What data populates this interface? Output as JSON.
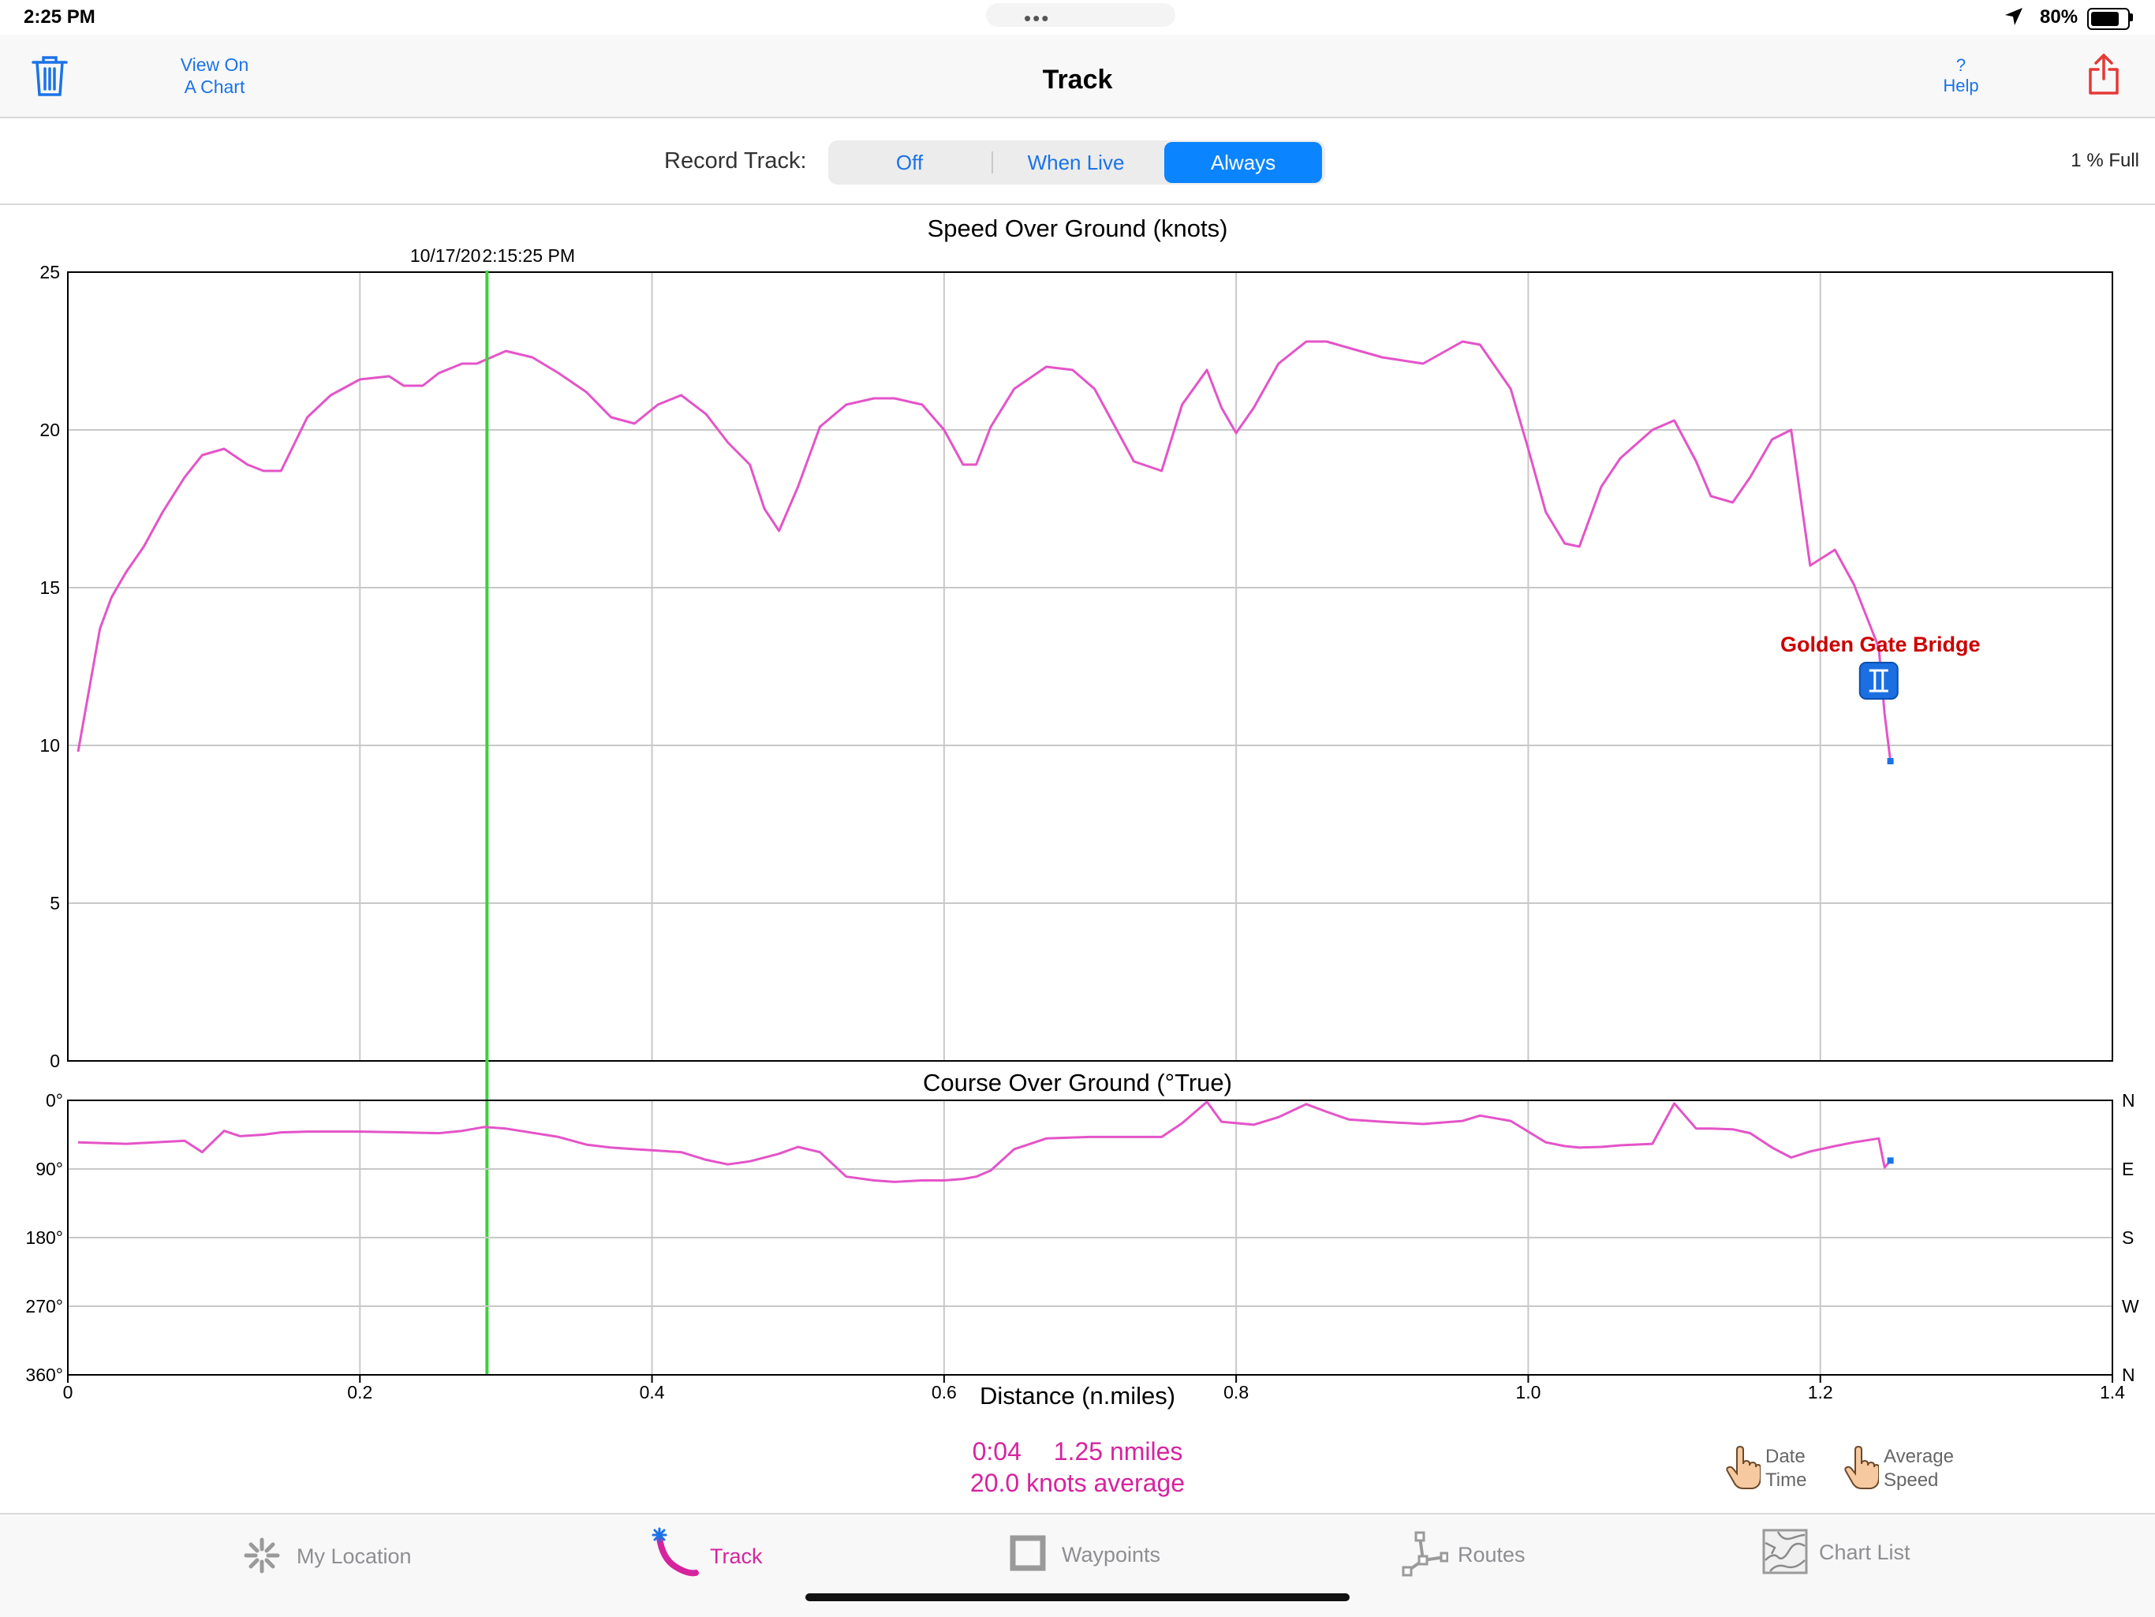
{
  "status_bar": {
    "time": "2:25 PM",
    "battery": "80%",
    "battery_level": 0.8
  },
  "nav": {
    "title": "Track",
    "view_on_chart_line1": "View On",
    "view_on_chart_line2": "A Chart",
    "help_symbol": "?",
    "help_label": "Help",
    "delete_icon": "trash-icon",
    "share_icon": "share-icon"
  },
  "record": {
    "label": "Record Track:",
    "options": [
      "Off",
      "When Live",
      "Always"
    ],
    "selected": "Always",
    "storage": "1 % Full"
  },
  "chart_data": [
    {
      "type": "line",
      "title": "Speed Over Ground (knots)",
      "xlabel": "Distance (n.miles)",
      "ylabel": "",
      "xlim": [
        0,
        1.4
      ],
      "ylim": [
        0,
        25
      ],
      "x_ticks": [
        "0",
        "0.2",
        "0.4",
        "0.6",
        "0.8",
        "1.0",
        "1.2",
        "1.4"
      ],
      "y_ticks": [
        "0",
        "5",
        "10",
        "15",
        "20",
        "25"
      ],
      "grid": true,
      "color": "#e454c8",
      "cursor": {
        "x": 0.287,
        "label_date": "10/17/20",
        "label_time": "2:15:25 PM",
        "color": "#3dd13d"
      },
      "annotation": {
        "text": "Golden Gate Bridge",
        "x": 1.24,
        "color": "#cc0000"
      },
      "series": [
        {
          "x": [
            0.007,
            0.022,
            0.03,
            0.04,
            0.052,
            0.065,
            0.08,
            0.092,
            0.107,
            0.123,
            0.134,
            0.146,
            0.164,
            0.18,
            0.2,
            0.22,
            0.23,
            0.243,
            0.254,
            0.27,
            0.28,
            0.3,
            0.318,
            0.336,
            0.355,
            0.372,
            0.388,
            0.404,
            0.42,
            0.437,
            0.452,
            0.467,
            0.477,
            0.487,
            0.5,
            0.515,
            0.533,
            0.552,
            0.566,
            0.585,
            0.6,
            0.613,
            0.622,
            0.632,
            0.648,
            0.67,
            0.688,
            0.703,
            0.73,
            0.749,
            0.763,
            0.78,
            0.79,
            0.8,
            0.812,
            0.829,
            0.848,
            0.862,
            0.877,
            0.9,
            0.928,
            0.955,
            0.967,
            0.988,
            1.0,
            1.012,
            1.025,
            1.035,
            1.05,
            1.063,
            1.085,
            1.1,
            1.115,
            1.125,
            1.14,
            1.152,
            1.167,
            1.18,
            1.193,
            1.21,
            1.223,
            1.24,
            1.244,
            1.248
          ],
          "values": [
            9.8,
            13.7,
            14.7,
            15.5,
            16.3,
            17.4,
            18.5,
            19.2,
            19.4,
            18.9,
            18.7,
            18.7,
            20.4,
            21.1,
            21.6,
            21.7,
            21.4,
            21.4,
            21.8,
            22.1,
            22.1,
            22.5,
            22.3,
            21.8,
            21.2,
            20.4,
            20.2,
            20.8,
            21.1,
            20.5,
            19.6,
            18.9,
            17.5,
            16.8,
            18.2,
            20.1,
            20.8,
            21.0,
            21.0,
            20.8,
            20.0,
            18.9,
            18.9,
            20.1,
            21.3,
            22.0,
            21.9,
            21.3,
            19.0,
            18.7,
            20.8,
            21.9,
            20.7,
            19.9,
            20.7,
            22.1,
            22.8,
            22.8,
            22.6,
            22.3,
            22.1,
            22.8,
            22.7,
            21.3,
            19.4,
            17.4,
            16.4,
            16.3,
            18.2,
            19.1,
            20.0,
            20.3,
            19.0,
            17.9,
            17.7,
            18.5,
            19.7,
            20.0,
            15.7,
            16.2,
            15.1,
            13.1,
            11.0,
            9.5
          ]
        }
      ]
    },
    {
      "type": "line",
      "title": "Course Over Ground (°True)",
      "xlabel": "Distance (n.miles)",
      "xlim": [
        0,
        1.4
      ],
      "ylim": [
        0,
        360
      ],
      "y_inverted": true,
      "y_ticks": [
        "0°",
        "90°",
        "180°",
        "270°",
        "360°"
      ],
      "y_ticks_right": [
        "N",
        "E",
        "S",
        "W",
        "N"
      ],
      "grid": true,
      "color": "#e454c8",
      "series": [
        {
          "x": [
            0.007,
            0.04,
            0.08,
            0.092,
            0.107,
            0.118,
            0.134,
            0.146,
            0.164,
            0.2,
            0.23,
            0.254,
            0.27,
            0.285,
            0.3,
            0.336,
            0.355,
            0.372,
            0.388,
            0.404,
            0.42,
            0.437,
            0.452,
            0.467,
            0.487,
            0.5,
            0.515,
            0.533,
            0.552,
            0.566,
            0.585,
            0.6,
            0.613,
            0.622,
            0.632,
            0.648,
            0.67,
            0.7,
            0.73,
            0.749,
            0.763,
            0.78,
            0.79,
            0.812,
            0.829,
            0.848,
            0.862,
            0.877,
            0.9,
            0.928,
            0.955,
            0.967,
            0.988,
            1.0,
            1.012,
            1.025,
            1.035,
            1.05,
            1.063,
            1.085,
            1.1,
            1.115,
            1.125,
            1.14,
            1.152,
            1.167,
            1.18,
            1.193,
            1.21,
            1.223,
            1.24,
            1.244,
            1.248
          ],
          "values": [
            55,
            57,
            53,
            68,
            40,
            47,
            45,
            42,
            41,
            41,
            42,
            43,
            40,
            35,
            37,
            48,
            58,
            62,
            64,
            66,
            68,
            78,
            84,
            80,
            70,
            61,
            68,
            100,
            105,
            107,
            105,
            105,
            103,
            100,
            92,
            64,
            50,
            48,
            48,
            48,
            30,
            2,
            28,
            32,
            22,
            5,
            15,
            25,
            28,
            31,
            27,
            20,
            27,
            41,
            55,
            60,
            62,
            61,
            59,
            57,
            4,
            37,
            37,
            38,
            43,
            62,
            75,
            67,
            60,
            55,
            50,
            88,
            79
          ],
          "end_marker_x": 1.248,
          "end_marker_value": 79
        }
      ]
    }
  ],
  "summary": {
    "elapsed": "0:04",
    "distance": "1.25 nmiles",
    "average": "20.0 knots average"
  },
  "cursor_modes": [
    {
      "line1": "Date",
      "line2": "Time",
      "icon": "hand-pointer-icon"
    },
    {
      "line1": "Average",
      "line2": "Speed",
      "icon": "hand-pointer-icon"
    }
  ],
  "tabs": [
    {
      "label": "My Location",
      "icon": "my-location-icon"
    },
    {
      "label": "Track",
      "icon": "track-icon",
      "active": true
    },
    {
      "label": "Waypoints",
      "icon": "waypoints-icon"
    },
    {
      "label": "Routes",
      "icon": "routes-icon"
    },
    {
      "label": "Chart List",
      "icon": "chart-list-icon"
    }
  ]
}
